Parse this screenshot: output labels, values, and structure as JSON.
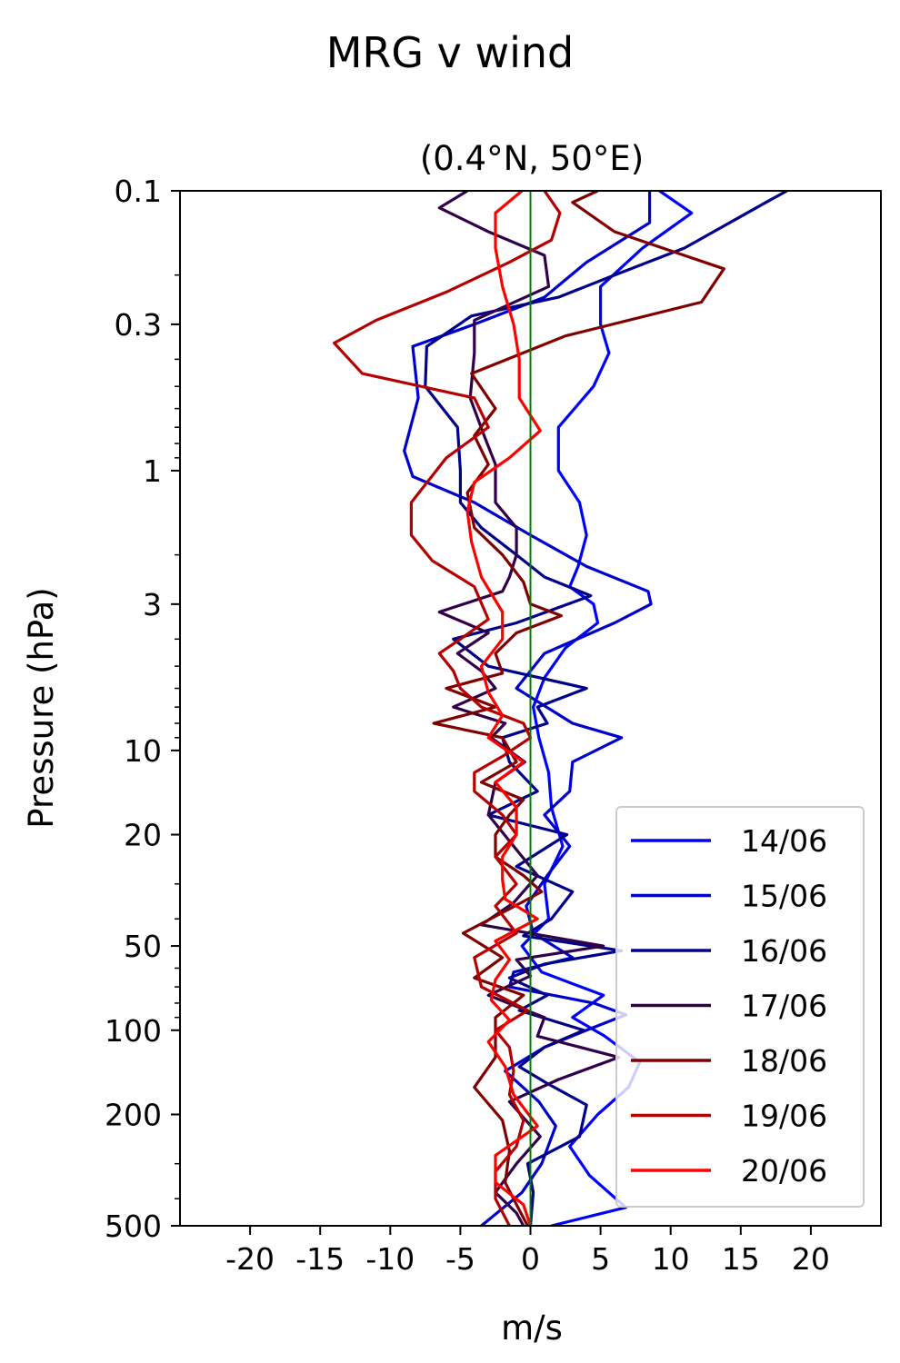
{
  "chart_data": {
    "type": "line",
    "suptitle": "MRG v wind",
    "title": "(0.4°N, 50°E)",
    "xlabel": "m/s",
    "ylabel": "Pressure (hPa)",
    "xlim": [
      -25,
      25
    ],
    "ylim": [
      500,
      0.1
    ],
    "yscale": "log",
    "xticks": [
      -20,
      -15,
      -10,
      -5,
      0,
      5,
      10,
      15,
      20
    ],
    "xtick_labels": [
      "-20",
      "-15",
      "-10",
      "-5",
      "0",
      "5",
      "10",
      "15",
      "20"
    ],
    "yticks": [
      0.1,
      0.3,
      1,
      3,
      10,
      20,
      50,
      100,
      200,
      500
    ],
    "ytick_labels": [
      "0.1",
      "0.3",
      "1",
      "3",
      "10",
      "20",
      "50",
      "100",
      "200",
      "500"
    ],
    "grid": false,
    "legend_position": "lower right",
    "zero_line_color": "#008000",
    "series": [
      {
        "name": "14/06",
        "color": "#0000ff",
        "points": [
          [
            9.2,
            0.1
          ],
          [
            11.5,
            0.12
          ],
          [
            8,
            0.16
          ],
          [
            5,
            0.22
          ],
          [
            5,
            0.3
          ],
          [
            5.6,
            0.38
          ],
          [
            4.5,
            0.5
          ],
          [
            2,
            0.7
          ],
          [
            2,
            1
          ],
          [
            3.5,
            1.3
          ],
          [
            4,
            1.7
          ],
          [
            3.4,
            2.2
          ],
          [
            2.8,
            2.6
          ],
          [
            4.5,
            3
          ],
          [
            4.8,
            3.5
          ],
          [
            2.5,
            4.3
          ],
          [
            1,
            5.5
          ],
          [
            0.2,
            7
          ],
          [
            0.6,
            9
          ],
          [
            1.3,
            12
          ],
          [
            1.5,
            16
          ],
          [
            2.3,
            22
          ],
          [
            1,
            30
          ],
          [
            1.3,
            40
          ],
          [
            -0.6,
            50
          ],
          [
            0.8,
            62
          ],
          [
            5.2,
            75
          ],
          [
            3,
            90
          ],
          [
            5.3,
            105
          ],
          [
            7.8,
            130
          ],
          [
            7,
            160
          ],
          [
            4.8,
            200
          ],
          [
            2.8,
            260
          ],
          [
            4.2,
            330
          ],
          [
            6.8,
            430
          ],
          [
            1.5,
            500
          ]
        ]
      },
      {
        "name": "15/06",
        "color": "#0000cd",
        "points": [
          [
            8.5,
            0.1
          ],
          [
            8.5,
            0.13
          ],
          [
            4,
            0.18
          ],
          [
            1,
            0.24
          ],
          [
            -4,
            0.3
          ],
          [
            -8.4,
            0.36
          ],
          [
            -8,
            0.55
          ],
          [
            -9,
            0.85
          ],
          [
            -8.4,
            1.05
          ],
          [
            -4,
            1.3
          ],
          [
            0,
            1.7
          ],
          [
            4,
            2.2
          ],
          [
            8.4,
            2.7
          ],
          [
            8.6,
            3
          ],
          [
            6,
            3.5
          ],
          [
            1,
            4.5
          ],
          [
            -1,
            6
          ],
          [
            3,
            8
          ],
          [
            6.5,
            9
          ],
          [
            3,
            11
          ],
          [
            2.8,
            14
          ],
          [
            1,
            17
          ],
          [
            2.8,
            22
          ],
          [
            1.2,
            28
          ],
          [
            -0.3,
            36
          ],
          [
            0.2,
            45
          ],
          [
            3,
            55
          ],
          [
            -1.2,
            62
          ],
          [
            -1.5,
            70
          ],
          [
            4.5,
            80
          ],
          [
            6.8,
            88
          ],
          [
            4,
            100
          ],
          [
            1,
            115
          ],
          [
            -1.8,
            140
          ],
          [
            0.6,
            180
          ],
          [
            1.8,
            220
          ],
          [
            0.8,
            300
          ],
          [
            -0.6,
            380
          ],
          [
            -3.5,
            500
          ]
        ]
      },
      {
        "name": "16/06",
        "color": "#00008b",
        "points": [
          [
            18.3,
            0.1
          ],
          [
            16.8,
            0.11
          ],
          [
            11,
            0.16
          ],
          [
            6,
            0.2
          ],
          [
            2,
            0.24
          ],
          [
            -4.2,
            0.28
          ],
          [
            -7.4,
            0.36
          ],
          [
            -7.5,
            0.5
          ],
          [
            -5.2,
            0.7
          ],
          [
            -5,
            1
          ],
          [
            -5,
            1.3
          ],
          [
            -3.5,
            1.6
          ],
          [
            -1,
            2
          ],
          [
            1,
            2.4
          ],
          [
            4.3,
            2.8
          ],
          [
            -1,
            3.5
          ],
          [
            -5.5,
            4
          ],
          [
            -3,
            5
          ],
          [
            4,
            6
          ],
          [
            0.5,
            7
          ],
          [
            1.2,
            8
          ],
          [
            -2,
            9
          ],
          [
            -1.5,
            11
          ],
          [
            0.5,
            14
          ],
          [
            -3,
            17
          ],
          [
            2.6,
            20
          ],
          [
            -1,
            26
          ],
          [
            3,
            32
          ],
          [
            1.5,
            40
          ],
          [
            -0.5,
            46
          ],
          [
            6.5,
            52
          ],
          [
            1,
            58
          ],
          [
            -1.5,
            65
          ],
          [
            1.2,
            75
          ],
          [
            -0.8,
            85
          ],
          [
            3.8,
            100
          ],
          [
            1,
            115
          ],
          [
            -0.8,
            135
          ],
          [
            1.2,
            155
          ],
          [
            4,
            185
          ],
          [
            3.5,
            240
          ],
          [
            -0.2,
            300
          ],
          [
            0.2,
            380
          ],
          [
            0,
            500
          ]
        ]
      },
      {
        "name": "17/06",
        "color": "#32004b",
        "points": [
          [
            -4.5,
            0.1
          ],
          [
            -6.5,
            0.115
          ],
          [
            -3,
            0.14
          ],
          [
            1,
            0.17
          ],
          [
            1.3,
            0.22
          ],
          [
            -4,
            0.29
          ],
          [
            -4,
            0.38
          ],
          [
            -4.3,
            0.55
          ],
          [
            -3.3,
            0.75
          ],
          [
            -2.5,
            0.95
          ],
          [
            -2.5,
            1.3
          ],
          [
            -1,
            1.6
          ],
          [
            -1,
            2
          ],
          [
            -1.5,
            2.4
          ],
          [
            -2,
            2.7
          ],
          [
            -6.5,
            3.2
          ],
          [
            -3,
            3.8
          ],
          [
            -5.2,
            4.5
          ],
          [
            -3.5,
            5.2
          ],
          [
            -2.5,
            6
          ],
          [
            -5.5,
            7
          ],
          [
            -1.8,
            8
          ],
          [
            -2.8,
            9
          ],
          [
            -0.4,
            11
          ],
          [
            -2.5,
            13
          ],
          [
            -3,
            17
          ],
          [
            -1.2,
            22
          ],
          [
            0.5,
            28
          ],
          [
            -1.2,
            35
          ],
          [
            -3.5,
            42
          ],
          [
            5.2,
            50
          ],
          [
            -1,
            56
          ],
          [
            0,
            64
          ],
          [
            -3,
            75
          ],
          [
            1,
            90
          ],
          [
            0.5,
            105
          ],
          [
            6.3,
            125
          ],
          [
            2,
            150
          ],
          [
            -1.5,
            180
          ],
          [
            0.7,
            240
          ],
          [
            -1,
            300
          ],
          [
            -2.5,
            380
          ],
          [
            -1,
            450
          ],
          [
            -0.5,
            500
          ]
        ]
      },
      {
        "name": "18/06",
        "color": "#800000",
        "points": [
          [
            4.8,
            0.1
          ],
          [
            3,
            0.11
          ],
          [
            6,
            0.14
          ],
          [
            13.8,
            0.19
          ],
          [
            12.2,
            0.25
          ],
          [
            2.5,
            0.33
          ],
          [
            -4.2,
            0.45
          ],
          [
            -2.5,
            0.6
          ],
          [
            -4,
            0.75
          ],
          [
            -3,
            0.95
          ],
          [
            -4.5,
            1.2
          ],
          [
            -4,
            1.6
          ],
          [
            -2,
            2
          ],
          [
            -0.5,
            2.5
          ],
          [
            0,
            3
          ],
          [
            2.2,
            3.3
          ],
          [
            -1,
            3.8
          ],
          [
            -2.5,
            4.5
          ],
          [
            -2,
            5.3
          ],
          [
            -6,
            6
          ],
          [
            -2.5,
            7
          ],
          [
            -6.9,
            8
          ],
          [
            -2,
            9
          ],
          [
            -1,
            11
          ],
          [
            -3.5,
            13
          ],
          [
            -0.5,
            15
          ],
          [
            -1.5,
            17
          ],
          [
            -2.5,
            20
          ],
          [
            -2.5,
            24
          ],
          [
            -0.5,
            28
          ],
          [
            0.8,
            32
          ],
          [
            -2,
            38
          ],
          [
            -4.8,
            45
          ],
          [
            -2,
            55
          ],
          [
            -4,
            65
          ],
          [
            -0.5,
            75
          ],
          [
            -2.5,
            90
          ],
          [
            -2.5,
            105
          ],
          [
            -2.5,
            125
          ],
          [
            -4,
            160
          ],
          [
            -2,
            210
          ],
          [
            -1.5,
            270
          ],
          [
            -1.8,
            350
          ],
          [
            -1,
            420
          ],
          [
            -0.2,
            500
          ]
        ]
      },
      {
        "name": "19/06",
        "color": "#b40000",
        "points": [
          [
            1,
            0.1
          ],
          [
            2.1,
            0.12
          ],
          [
            1.5,
            0.15
          ],
          [
            -1.5,
            0.18
          ],
          [
            -6,
            0.23
          ],
          [
            -11,
            0.29
          ],
          [
            -14,
            0.35
          ],
          [
            -12,
            0.45
          ],
          [
            -4,
            0.55
          ],
          [
            -3,
            0.7
          ],
          [
            -6,
            0.9
          ],
          [
            -8.5,
            1.3
          ],
          [
            -8.5,
            1.7
          ],
          [
            -7,
            2.1
          ],
          [
            -4,
            2.6
          ],
          [
            -3,
            3.4
          ],
          [
            -5,
            4
          ],
          [
            -6.5,
            4.5
          ],
          [
            -5.5,
            5.2
          ],
          [
            -5,
            6
          ],
          [
            -3.5,
            7
          ],
          [
            -0.5,
            8
          ],
          [
            0,
            9
          ],
          [
            -2,
            10.5
          ],
          [
            -4,
            12
          ],
          [
            -4,
            14
          ],
          [
            -2,
            17
          ],
          [
            -1,
            20
          ],
          [
            -2.5,
            24
          ],
          [
            -1,
            30
          ],
          [
            -2.5,
            36
          ],
          [
            -1,
            45
          ],
          [
            -4,
            55
          ],
          [
            -3.5,
            70
          ],
          [
            -0.2,
            85
          ],
          [
            -2.5,
            100
          ],
          [
            -1.5,
            115
          ],
          [
            -1.2,
            140
          ],
          [
            -1.5,
            170
          ],
          [
            -0.5,
            210
          ],
          [
            -1,
            260
          ],
          [
            -2.5,
            320
          ],
          [
            -2.5,
            400
          ],
          [
            -1.5,
            500
          ]
        ]
      },
      {
        "name": "20/06",
        "color": "#ff0000",
        "points": [
          [
            -0.6,
            0.1
          ],
          [
            -2.5,
            0.12
          ],
          [
            -2.5,
            0.16
          ],
          [
            -2,
            0.22
          ],
          [
            -1.2,
            0.3
          ],
          [
            -0.8,
            0.4
          ],
          [
            -0.8,
            0.55
          ],
          [
            0.7,
            0.72
          ],
          [
            -1.5,
            0.9
          ],
          [
            -4,
            1.1
          ],
          [
            -4.5,
            1.4
          ],
          [
            -4.2,
            1.8
          ],
          [
            -3.5,
            2.4
          ],
          [
            -2,
            3.2
          ],
          [
            -2,
            4
          ],
          [
            -3.5,
            5
          ],
          [
            -3,
            6.2
          ],
          [
            -2,
            7.5
          ],
          [
            -3,
            9
          ],
          [
            -0.5,
            11
          ],
          [
            -2.5,
            13
          ],
          [
            -1,
            16
          ],
          [
            -1,
            20
          ],
          [
            -2,
            24
          ],
          [
            -2,
            29
          ],
          [
            -1.8,
            34
          ],
          [
            0.5,
            40
          ],
          [
            -2.5,
            48
          ],
          [
            -1.5,
            56
          ],
          [
            -2.5,
            66
          ],
          [
            -2.8,
            78
          ],
          [
            -1.5,
            92
          ],
          [
            -3,
            110
          ],
          [
            -1.8,
            135
          ],
          [
            -1.2,
            170
          ],
          [
            0.5,
            220
          ],
          [
            -2.5,
            280
          ],
          [
            -2.5,
            350
          ],
          [
            -0.5,
            420
          ],
          [
            0,
            500
          ]
        ]
      }
    ]
  }
}
